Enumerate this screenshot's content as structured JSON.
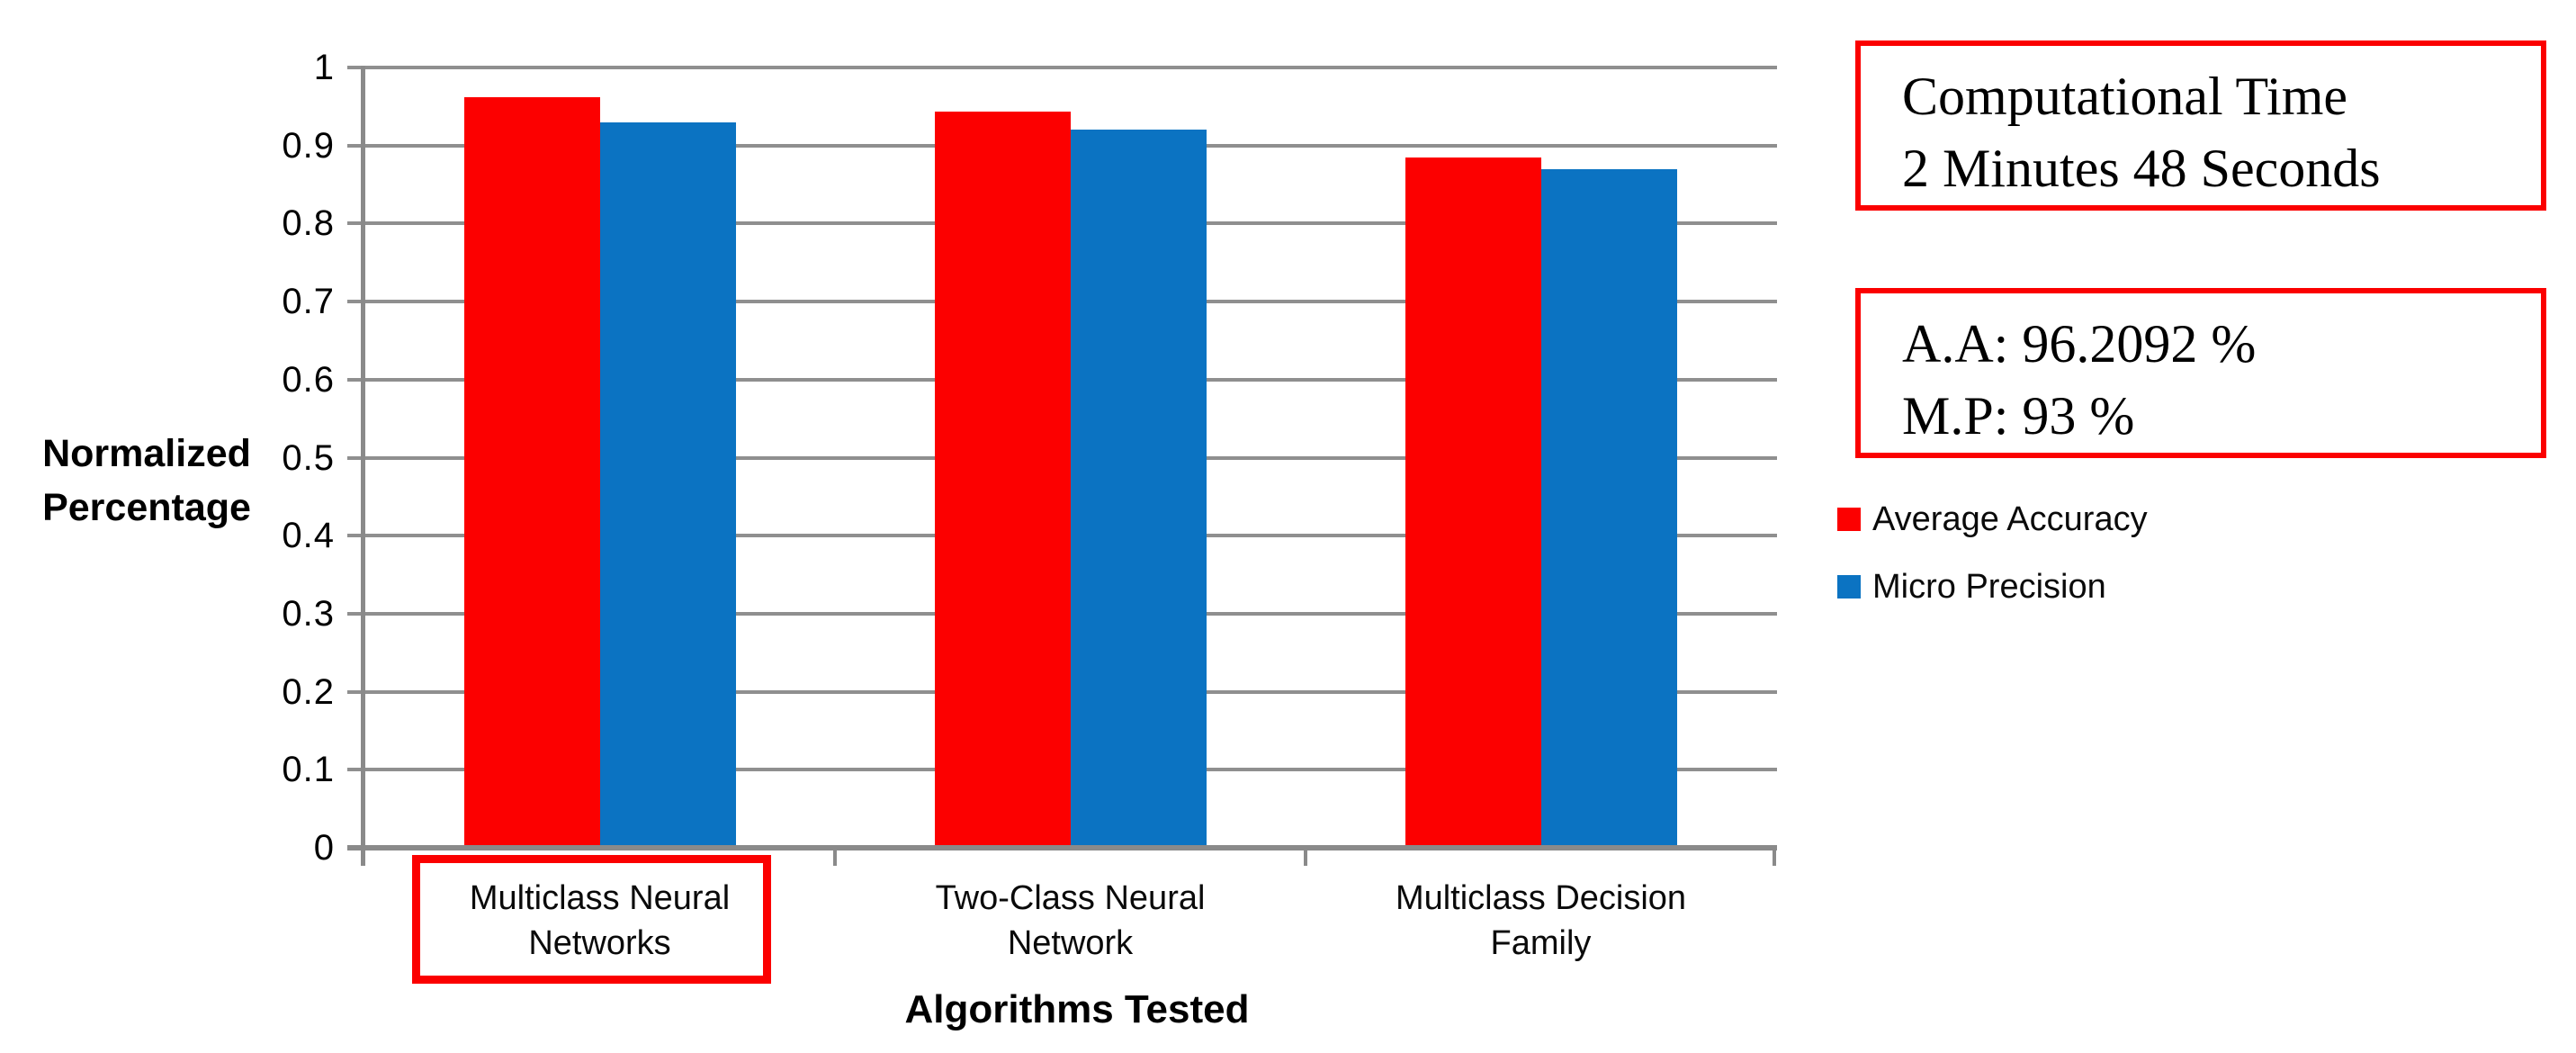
{
  "chart_data": {
    "type": "bar",
    "title": "",
    "categories": [
      "Multiclass Neural Networks",
      "Two-Class Neural Network",
      "Multiclass Decision Family"
    ],
    "category_lines": [
      [
        "Multiclass Neural",
        "Networks"
      ],
      [
        "Two-Class Neural",
        "Network"
      ],
      [
        "Multiclass Decision",
        "Family"
      ]
    ],
    "series": [
      {
        "name": "Average Accuracy",
        "color": "#fc0000",
        "values": [
          0.962,
          0.943,
          0.885
        ]
      },
      {
        "name": "Micro Precision",
        "color": "#0b73c2",
        "values": [
          0.93,
          0.92,
          0.87
        ]
      }
    ],
    "xlabel": "Algorithms Tested",
    "ylabel": "Normalized Percentage",
    "ylabel_lines": [
      "Normalized",
      "Percentage"
    ],
    "ylim": [
      0,
      1
    ],
    "ytick_step": 0.1,
    "yticks": [
      "0",
      "0.1",
      "0.2",
      "0.3",
      "0.4",
      "0.5",
      "0.6",
      "0.7",
      "0.8",
      "0.9",
      "1"
    ],
    "grid": true,
    "legend_position": "right",
    "highlighted_category": "Multiclass Neural Networks"
  },
  "annotations": {
    "computation_box": {
      "line1": "Computational Time",
      "line2": "2 Minutes 48 Seconds"
    },
    "results_box": {
      "line1": "A.A: 96.2092 %",
      "line2": "M.P: 93 %"
    }
  },
  "legend": {
    "items": [
      {
        "label": "Average Accuracy",
        "color": "#fc0000"
      },
      {
        "label": "Micro Precision",
        "color": "#0b73c2"
      }
    ]
  },
  "colors": {
    "series_red": "#fc0000",
    "series_blue": "#0b73c2",
    "gridline": "#8f8f8f",
    "axis": "#8a8a8a",
    "highlight_border": "#fb0000",
    "background": "#ffffff",
    "text": "#000000"
  }
}
